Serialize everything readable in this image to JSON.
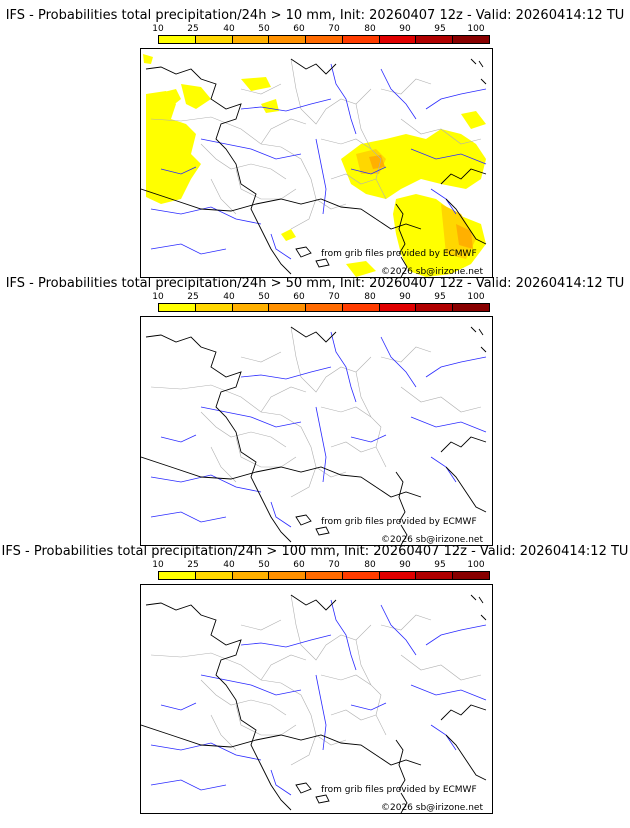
{
  "panels": [
    {
      "title": "IFS - Probabilities total precipitation/24h > 10 mm, Init: 20260407 12z - Valid: 20260414:12 TU",
      "threshold_mm": 10,
      "has_precip": true
    },
    {
      "title": "IFS - Probabilities total precipitation/24h > 50 mm, Init: 20260407 12z - Valid: 20260414:12 TU",
      "threshold_mm": 50,
      "has_precip": false
    },
    {
      "title": "IFS - Probabilities total precipitation/24h > 100 mm, Init: 20260407 12z - Valid: 20260414:12 TU",
      "threshold_mm": 100,
      "has_precip": false
    }
  ],
  "scale": {
    "labels": [
      "10",
      "25",
      "40",
      "50",
      "60",
      "70",
      "80",
      "90",
      "95",
      "100"
    ],
    "colors": [
      "#ffff00",
      "#ffd700",
      "#ffb000",
      "#ff9000",
      "#ff6a00",
      "#ff3c00",
      "#e00000",
      "#b00000",
      "#880000",
      "#5a0000"
    ]
  },
  "credits": {
    "source": "from grib files provided by ECMWF",
    "copyright": "©2026 sb@irizone.net"
  },
  "colors": {
    "precip": "#ffff00",
    "precip_mid": "#ffd700",
    "precip_high": "#ffb000",
    "rivers": "#2a2aff",
    "borders": "#b0b0b0",
    "coast": "#000000"
  }
}
